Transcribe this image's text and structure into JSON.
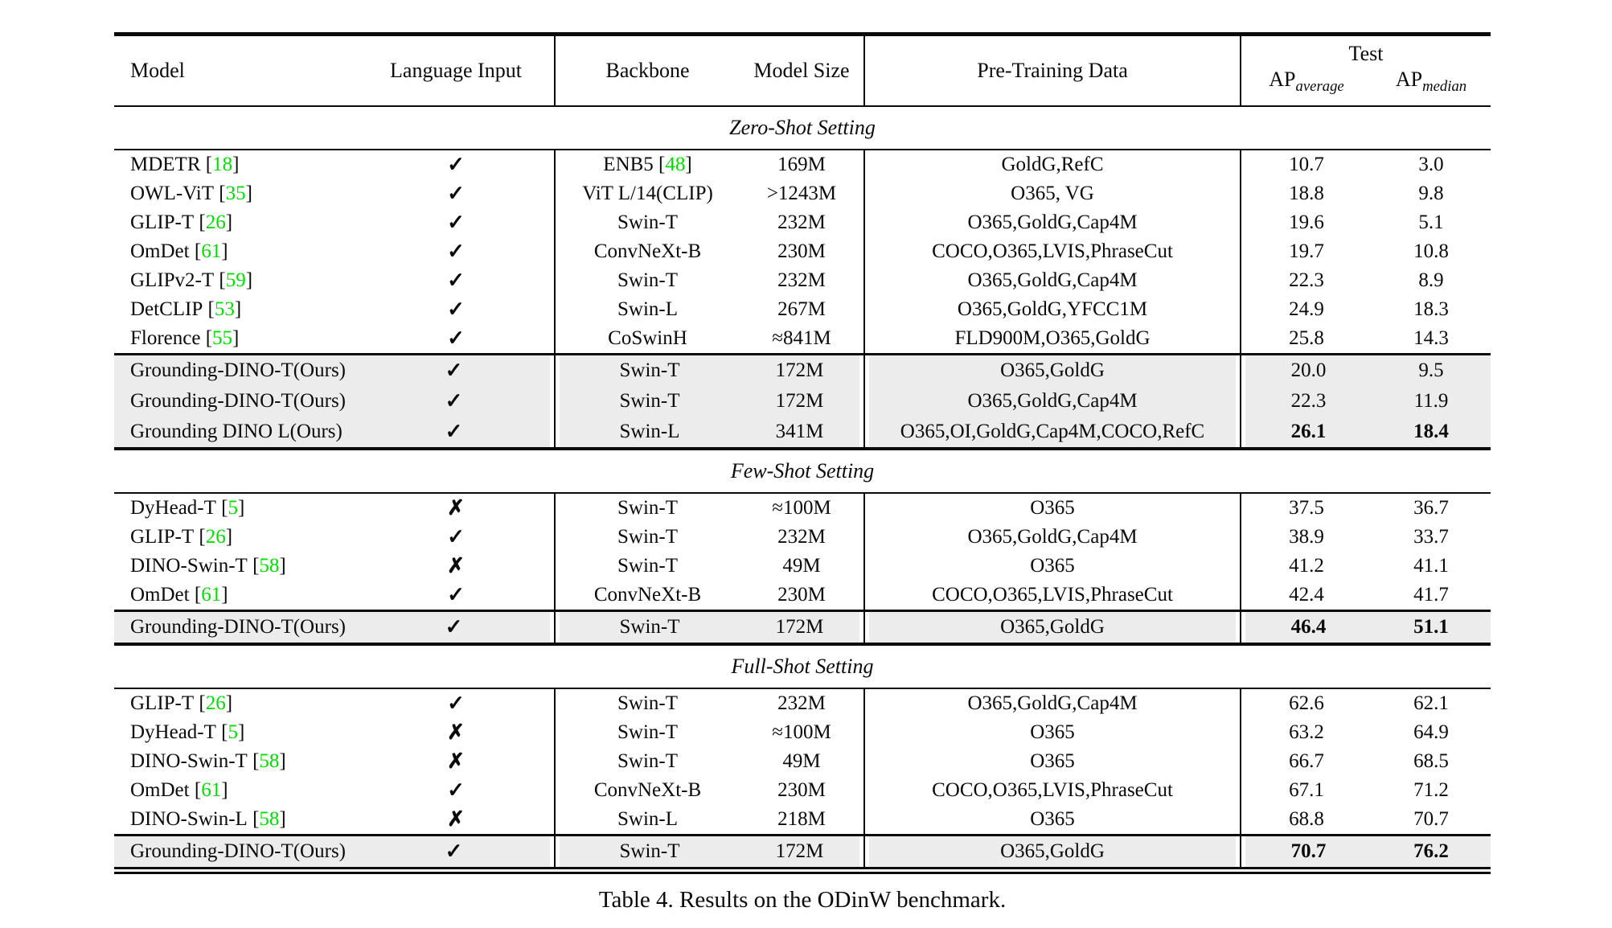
{
  "page": {
    "caption": "Table 4. Results on the ODinW benchmark."
  },
  "colors": {
    "citation_green": "#00e000",
    "highlight_gray": "#ececec",
    "rule_black": "#0b0b0b"
  },
  "glyphs": {
    "check": "✓",
    "cross": "✗"
  },
  "table": {
    "header": {
      "model": "Model",
      "language_input": "Language Input",
      "backbone": "Backbone",
      "model_size": "Model Size",
      "pretraining_data": "Pre-Training Data",
      "test": "Test",
      "ap_columns": [
        {
          "base": "AP",
          "sub": "average"
        },
        {
          "base": "AP",
          "sub": "median"
        }
      ]
    },
    "sections": [
      {
        "title": "Zero-Shot Setting",
        "rows": [
          {
            "model": "MDETR",
            "cite": "18",
            "check": true,
            "backbone": "ENB5",
            "backbone_cite": "48",
            "size": "169M",
            "pretrain": "GoldG,RefC",
            "ap_avg": "10.7",
            "ap_med": "3.0",
            "bold": false
          },
          {
            "model": "OWL-ViT",
            "cite": "35",
            "check": true,
            "backbone": "ViT L/14(CLIP)",
            "backbone_cite": "",
            "size": ">1243M",
            "pretrain": "O365, VG",
            "ap_avg": "18.8",
            "ap_med": "9.8",
            "bold": false
          },
          {
            "model": "GLIP-T",
            "cite": "26",
            "check": true,
            "backbone": "Swin-T",
            "backbone_cite": "",
            "size": "232M",
            "pretrain": "O365,GoldG,Cap4M",
            "ap_avg": "19.6",
            "ap_med": "5.1",
            "bold": false
          },
          {
            "model": "OmDet",
            "cite": "61",
            "check": true,
            "backbone": "ConvNeXt-B",
            "backbone_cite": "",
            "size": "230M",
            "pretrain": "COCO,O365,LVIS,PhraseCut",
            "ap_avg": "19.7",
            "ap_med": "10.8",
            "bold": false
          },
          {
            "model": "GLIPv2-T",
            "cite": "59",
            "check": true,
            "backbone": "Swin-T",
            "backbone_cite": "",
            "size": "232M",
            "pretrain": "O365,GoldG,Cap4M",
            "ap_avg": "22.3",
            "ap_med": "8.9",
            "bold": false
          },
          {
            "model": "DetCLIP",
            "cite": "53",
            "check": true,
            "backbone": "Swin-L",
            "backbone_cite": "",
            "size": "267M",
            "pretrain": "O365,GoldG,YFCC1M",
            "ap_avg": "24.9",
            "ap_med": "18.3",
            "bold": false
          },
          {
            "model": "Florence",
            "cite": "55",
            "check": true,
            "backbone": "CoSwinH",
            "backbone_cite": "",
            "size": "≈841M",
            "pretrain": "FLD900M,O365,GoldG",
            "ap_avg": "25.8",
            "ap_med": "14.3",
            "bold": false
          }
        ],
        "highlight_rows": [
          {
            "model": "Grounding-DINO-T(Ours)",
            "cite": "",
            "check": true,
            "backbone": "Swin-T",
            "backbone_cite": "",
            "size": "172M",
            "pretrain": "O365,GoldG",
            "ap_avg": "20.0",
            "ap_med": "9.5",
            "bold": false
          },
          {
            "model": "Grounding-DINO-T(Ours)",
            "cite": "",
            "check": true,
            "backbone": "Swin-T",
            "backbone_cite": "",
            "size": "172M",
            "pretrain": "O365,GoldG,Cap4M",
            "ap_avg": "22.3",
            "ap_med": "11.9",
            "bold": false
          },
          {
            "model": "Grounding DINO L(Ours)",
            "cite": "",
            "check": true,
            "backbone": "Swin-L",
            "backbone_cite": "",
            "size": "341M",
            "pretrain": "O365,OI,GoldG,Cap4M,COCO,RefC",
            "ap_avg": "26.1",
            "ap_med": "18.4",
            "bold": true
          }
        ]
      },
      {
        "title": "Few-Shot Setting",
        "rows": [
          {
            "model": "DyHead-T",
            "cite": "5",
            "check": false,
            "backbone": "Swin-T",
            "backbone_cite": "",
            "size": "≈100M",
            "pretrain": "O365",
            "ap_avg": "37.5",
            "ap_med": "36.7",
            "bold": false
          },
          {
            "model": "GLIP-T",
            "cite": "26",
            "check": true,
            "backbone": "Swin-T",
            "backbone_cite": "",
            "size": "232M",
            "pretrain": "O365,GoldG,Cap4M",
            "ap_avg": "38.9",
            "ap_med": "33.7",
            "bold": false
          },
          {
            "model": "DINO-Swin-T",
            "cite": "58",
            "check": false,
            "backbone": "Swin-T",
            "backbone_cite": "",
            "size": "49M",
            "pretrain": "O365",
            "ap_avg": "41.2",
            "ap_med": "41.1",
            "bold": false
          },
          {
            "model": "OmDet",
            "cite": "61",
            "check": true,
            "backbone": "ConvNeXt-B",
            "backbone_cite": "",
            "size": "230M",
            "pretrain": "COCO,O365,LVIS,PhraseCut",
            "ap_avg": "42.4",
            "ap_med": "41.7",
            "bold": false
          }
        ],
        "highlight_rows": [
          {
            "model": "Grounding-DINO-T(Ours)",
            "cite": "",
            "check": true,
            "backbone": "Swin-T",
            "backbone_cite": "",
            "size": "172M",
            "pretrain": "O365,GoldG",
            "ap_avg": "46.4",
            "ap_med": "51.1",
            "bold": true
          }
        ]
      },
      {
        "title": "Full-Shot Setting",
        "rows": [
          {
            "model": "GLIP-T",
            "cite": "26",
            "check": true,
            "backbone": "Swin-T",
            "backbone_cite": "",
            "size": "232M",
            "pretrain": "O365,GoldG,Cap4M",
            "ap_avg": "62.6",
            "ap_med": "62.1",
            "bold": false
          },
          {
            "model": "DyHead-T",
            "cite": "5",
            "check": false,
            "backbone": "Swin-T",
            "backbone_cite": "",
            "size": "≈100M",
            "pretrain": "O365",
            "ap_avg": "63.2",
            "ap_med": "64.9",
            "bold": false
          },
          {
            "model": "DINO-Swin-T",
            "cite": "58",
            "check": false,
            "backbone": "Swin-T",
            "backbone_cite": "",
            "size": "49M",
            "pretrain": "O365",
            "ap_avg": "66.7",
            "ap_med": "68.5",
            "bold": false
          },
          {
            "model": "OmDet",
            "cite": "61",
            "check": true,
            "backbone": "ConvNeXt-B",
            "backbone_cite": "",
            "size": "230M",
            "pretrain": "COCO,O365,LVIS,PhraseCut",
            "ap_avg": "67.1",
            "ap_med": "71.2",
            "bold": false
          },
          {
            "model": "DINO-Swin-L",
            "cite": "58",
            "check": false,
            "backbone": "Swin-L",
            "backbone_cite": "",
            "size": "218M",
            "pretrain": "O365",
            "ap_avg": "68.8",
            "ap_med": "70.7",
            "bold": false
          }
        ],
        "highlight_rows": [
          {
            "model": "Grounding-DINO-T(Ours)",
            "cite": "",
            "check": true,
            "backbone": "Swin-T",
            "backbone_cite": "",
            "size": "172M",
            "pretrain": "O365,GoldG",
            "ap_avg": "70.7",
            "ap_med": "76.2",
            "bold": true
          }
        ]
      }
    ]
  }
}
